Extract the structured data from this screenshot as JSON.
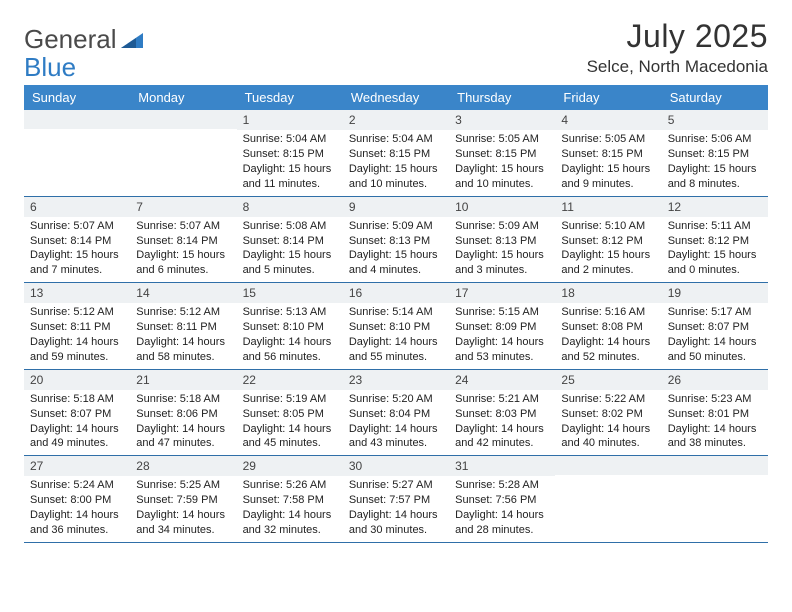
{
  "brand": {
    "part1": "General",
    "part2": "Blue"
  },
  "title": "July 2025",
  "location": "Selce, North Macedonia",
  "accent_color": "#3a85c9",
  "rule_color": "#2f6fa8",
  "daynum_bg": "#eef1f3",
  "weekdays": [
    "Sunday",
    "Monday",
    "Tuesday",
    "Wednesday",
    "Thursday",
    "Friday",
    "Saturday"
  ],
  "weeks": [
    [
      null,
      null,
      {
        "n": "1",
        "sunrise": "5:04 AM",
        "sunset": "8:15 PM",
        "day_h": "15",
        "day_m": "11"
      },
      {
        "n": "2",
        "sunrise": "5:04 AM",
        "sunset": "8:15 PM",
        "day_h": "15",
        "day_m": "10"
      },
      {
        "n": "3",
        "sunrise": "5:05 AM",
        "sunset": "8:15 PM",
        "day_h": "15",
        "day_m": "10"
      },
      {
        "n": "4",
        "sunrise": "5:05 AM",
        "sunset": "8:15 PM",
        "day_h": "15",
        "day_m": "9"
      },
      {
        "n": "5",
        "sunrise": "5:06 AM",
        "sunset": "8:15 PM",
        "day_h": "15",
        "day_m": "8"
      }
    ],
    [
      {
        "n": "6",
        "sunrise": "5:07 AM",
        "sunset": "8:14 PM",
        "day_h": "15",
        "day_m": "7"
      },
      {
        "n": "7",
        "sunrise": "5:07 AM",
        "sunset": "8:14 PM",
        "day_h": "15",
        "day_m": "6"
      },
      {
        "n": "8",
        "sunrise": "5:08 AM",
        "sunset": "8:14 PM",
        "day_h": "15",
        "day_m": "5"
      },
      {
        "n": "9",
        "sunrise": "5:09 AM",
        "sunset": "8:13 PM",
        "day_h": "15",
        "day_m": "4"
      },
      {
        "n": "10",
        "sunrise": "5:09 AM",
        "sunset": "8:13 PM",
        "day_h": "15",
        "day_m": "3"
      },
      {
        "n": "11",
        "sunrise": "5:10 AM",
        "sunset": "8:12 PM",
        "day_h": "15",
        "day_m": "2"
      },
      {
        "n": "12",
        "sunrise": "5:11 AM",
        "sunset": "8:12 PM",
        "day_h": "15",
        "day_m": "0"
      }
    ],
    [
      {
        "n": "13",
        "sunrise": "5:12 AM",
        "sunset": "8:11 PM",
        "day_h": "14",
        "day_m": "59"
      },
      {
        "n": "14",
        "sunrise": "5:12 AM",
        "sunset": "8:11 PM",
        "day_h": "14",
        "day_m": "58"
      },
      {
        "n": "15",
        "sunrise": "5:13 AM",
        "sunset": "8:10 PM",
        "day_h": "14",
        "day_m": "56"
      },
      {
        "n": "16",
        "sunrise": "5:14 AM",
        "sunset": "8:10 PM",
        "day_h": "14",
        "day_m": "55"
      },
      {
        "n": "17",
        "sunrise": "5:15 AM",
        "sunset": "8:09 PM",
        "day_h": "14",
        "day_m": "53"
      },
      {
        "n": "18",
        "sunrise": "5:16 AM",
        "sunset": "8:08 PM",
        "day_h": "14",
        "day_m": "52"
      },
      {
        "n": "19",
        "sunrise": "5:17 AM",
        "sunset": "8:07 PM",
        "day_h": "14",
        "day_m": "50"
      }
    ],
    [
      {
        "n": "20",
        "sunrise": "5:18 AM",
        "sunset": "8:07 PM",
        "day_h": "14",
        "day_m": "49"
      },
      {
        "n": "21",
        "sunrise": "5:18 AM",
        "sunset": "8:06 PM",
        "day_h": "14",
        "day_m": "47"
      },
      {
        "n": "22",
        "sunrise": "5:19 AM",
        "sunset": "8:05 PM",
        "day_h": "14",
        "day_m": "45"
      },
      {
        "n": "23",
        "sunrise": "5:20 AM",
        "sunset": "8:04 PM",
        "day_h": "14",
        "day_m": "43"
      },
      {
        "n": "24",
        "sunrise": "5:21 AM",
        "sunset": "8:03 PM",
        "day_h": "14",
        "day_m": "42"
      },
      {
        "n": "25",
        "sunrise": "5:22 AM",
        "sunset": "8:02 PM",
        "day_h": "14",
        "day_m": "40"
      },
      {
        "n": "26",
        "sunrise": "5:23 AM",
        "sunset": "8:01 PM",
        "day_h": "14",
        "day_m": "38"
      }
    ],
    [
      {
        "n": "27",
        "sunrise": "5:24 AM",
        "sunset": "8:00 PM",
        "day_h": "14",
        "day_m": "36"
      },
      {
        "n": "28",
        "sunrise": "5:25 AM",
        "sunset": "7:59 PM",
        "day_h": "14",
        "day_m": "34"
      },
      {
        "n": "29",
        "sunrise": "5:26 AM",
        "sunset": "7:58 PM",
        "day_h": "14",
        "day_m": "32"
      },
      {
        "n": "30",
        "sunrise": "5:27 AM",
        "sunset": "7:57 PM",
        "day_h": "14",
        "day_m": "30"
      },
      {
        "n": "31",
        "sunrise": "5:28 AM",
        "sunset": "7:56 PM",
        "day_h": "14",
        "day_m": "28"
      },
      null,
      null
    ]
  ]
}
